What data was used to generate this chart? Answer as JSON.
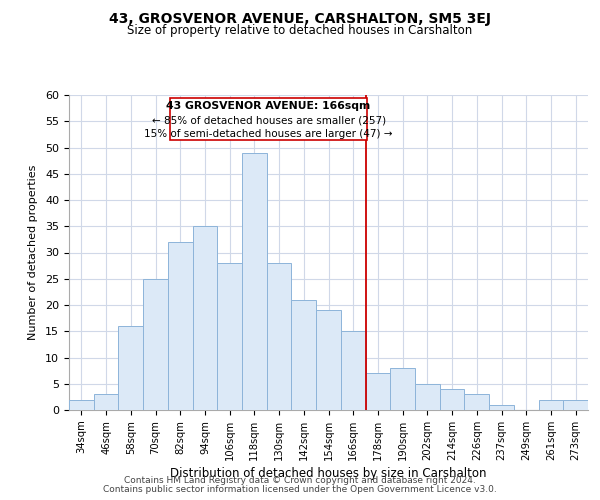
{
  "title": "43, GROSVENOR AVENUE, CARSHALTON, SM5 3EJ",
  "subtitle": "Size of property relative to detached houses in Carshalton",
  "xlabel": "Distribution of detached houses by size in Carshalton",
  "ylabel": "Number of detached properties",
  "bar_labels": [
    "34sqm",
    "46sqm",
    "58sqm",
    "70sqm",
    "82sqm",
    "94sqm",
    "106sqm",
    "118sqm",
    "130sqm",
    "142sqm",
    "154sqm",
    "166sqm",
    "178sqm",
    "190sqm",
    "202sqm",
    "214sqm",
    "226sqm",
    "237sqm",
    "249sqm",
    "261sqm",
    "273sqm"
  ],
  "bar_values": [
    2,
    3,
    16,
    25,
    32,
    35,
    28,
    49,
    28,
    21,
    19,
    15,
    7,
    8,
    5,
    4,
    3,
    1,
    0,
    2,
    2
  ],
  "bar_color": "#dce9f7",
  "bar_edge_color": "#8db4d9",
  "grid_color": "#d0d8e8",
  "vline_x_idx": 11,
  "vline_color": "#cc0000",
  "annotation_title": "43 GROSVENOR AVENUE: 166sqm",
  "annotation_line1": "← 85% of detached houses are smaller (257)",
  "annotation_line2": "15% of semi-detached houses are larger (47) →",
  "annotation_box_color": "#ffffff",
  "annotation_box_edge_color": "#cc0000",
  "ylim": [
    0,
    60
  ],
  "yticks": [
    0,
    5,
    10,
    15,
    20,
    25,
    30,
    35,
    40,
    45,
    50,
    55,
    60
  ],
  "footer1": "Contains HM Land Registry data © Crown copyright and database right 2024.",
  "footer2": "Contains public sector information licensed under the Open Government Licence v3.0."
}
